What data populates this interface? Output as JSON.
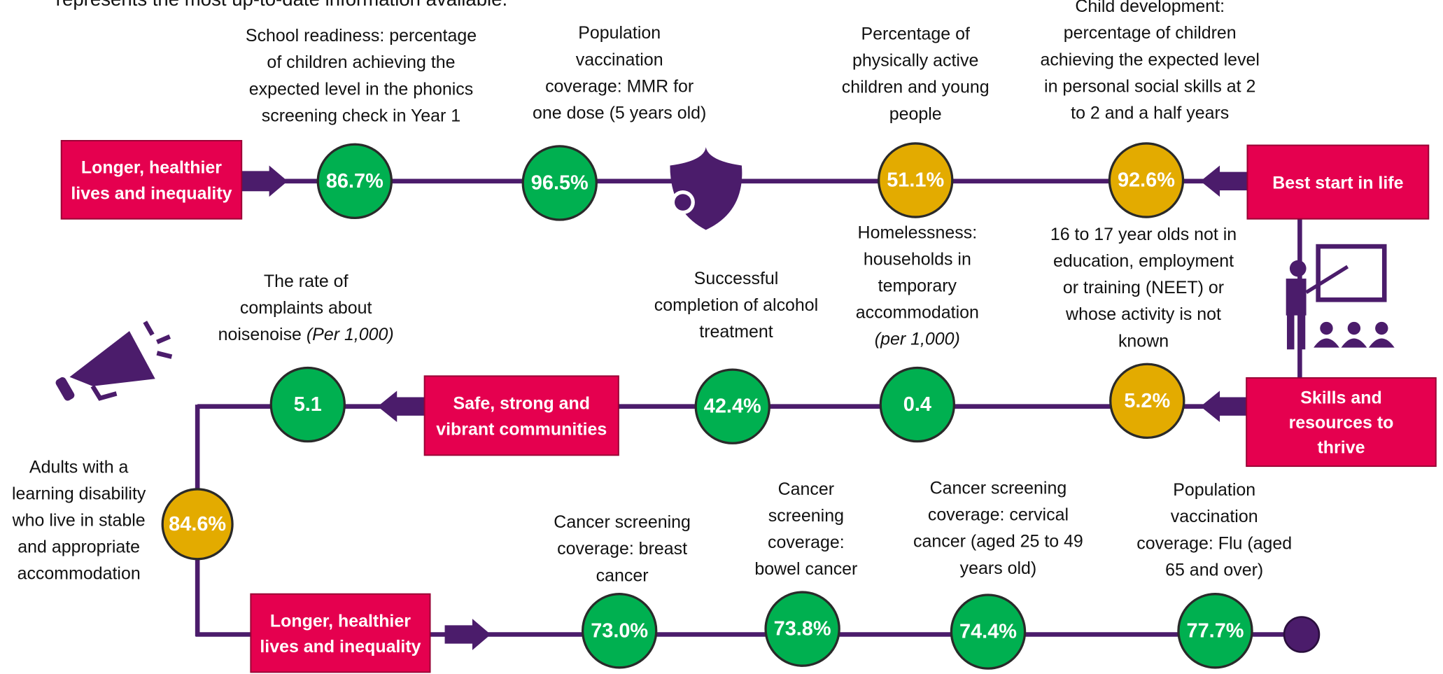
{
  "intro": "represents the most up-to-date information available.",
  "boxes": [
    {
      "lines": [
        "Longer, healthier",
        "lives and inequality"
      ]
    },
    {
      "lines": [
        "Best start in life"
      ]
    },
    {
      "lines": [
        "Skills and",
        "resources to",
        "thrive"
      ]
    },
    {
      "lines": [
        "Safe, strong and",
        "vibrant communities"
      ]
    },
    {
      "lines": [
        "Longer, healthier",
        "lives and inequality"
      ]
    }
  ],
  "nodes": [
    {
      "value": "86.7%",
      "status": "green",
      "lines": [
        "School readiness: percentage",
        "of children achieving the",
        "expected level in the phonics",
        "screening check in Year 1"
      ]
    },
    {
      "value": "96.5%",
      "status": "green",
      "lines": [
        "Population",
        "vaccination",
        "coverage: MMR for",
        "one dose (5 years old)"
      ]
    },
    {
      "value": "51.1%",
      "status": "amber",
      "lines": [
        "Percentage of",
        "physically active",
        "children and young",
        "people"
      ]
    },
    {
      "value": "92.6%",
      "status": "amber",
      "lines": [
        "Child development:",
        "percentage of children",
        "achieving the expected level",
        "in personal social skills at 2",
        "to 2 and a half years"
      ]
    },
    {
      "value": "5.2%",
      "status": "amber",
      "lines": [
        "16 to 17 year olds not in",
        "education, employment",
        "or training (NEET) or",
        "whose activity is not",
        "known"
      ]
    },
    {
      "value": "0.4",
      "status": "green",
      "lines": [
        "Homelessness:",
        "households in",
        "temporary",
        "accommodation"
      ],
      "note": "(per 1,000)"
    },
    {
      "value": "42.4%",
      "status": "green",
      "lines": [
        "Successful",
        "completion of alcohol",
        "treatment"
      ]
    },
    {
      "value": "5.1",
      "status": "green",
      "lines": [
        "The rate of",
        "complaints about",
        "noise"
      ],
      "note": "(Per 1,000)"
    },
    {
      "value": "84.6%",
      "status": "amber",
      "lines": [
        "Adults with a",
        "learning disability",
        "who live in stable",
        "and appropriate",
        "accommodation"
      ]
    },
    {
      "value": "73.0%",
      "status": "green",
      "lines": [
        "Cancer screening",
        "coverage: breast",
        "cancer"
      ]
    },
    {
      "value": "73.8%",
      "status": "green",
      "lines": [
        "Cancer",
        "screening",
        "coverage:",
        "bowel cancer"
      ]
    },
    {
      "value": "74.4%",
      "status": "green",
      "lines": [
        "Cancer screening",
        "coverage: cervical",
        "cancer (aged 25 to 49",
        "years old)"
      ]
    },
    {
      "value": "77.7%",
      "status": "green",
      "lines": [
        "Population",
        "vaccination",
        "coverage: Flu (aged",
        "65 and over)"
      ]
    }
  ],
  "colors": {
    "green": "#00b050",
    "amber": "#e3ab00"
  }
}
